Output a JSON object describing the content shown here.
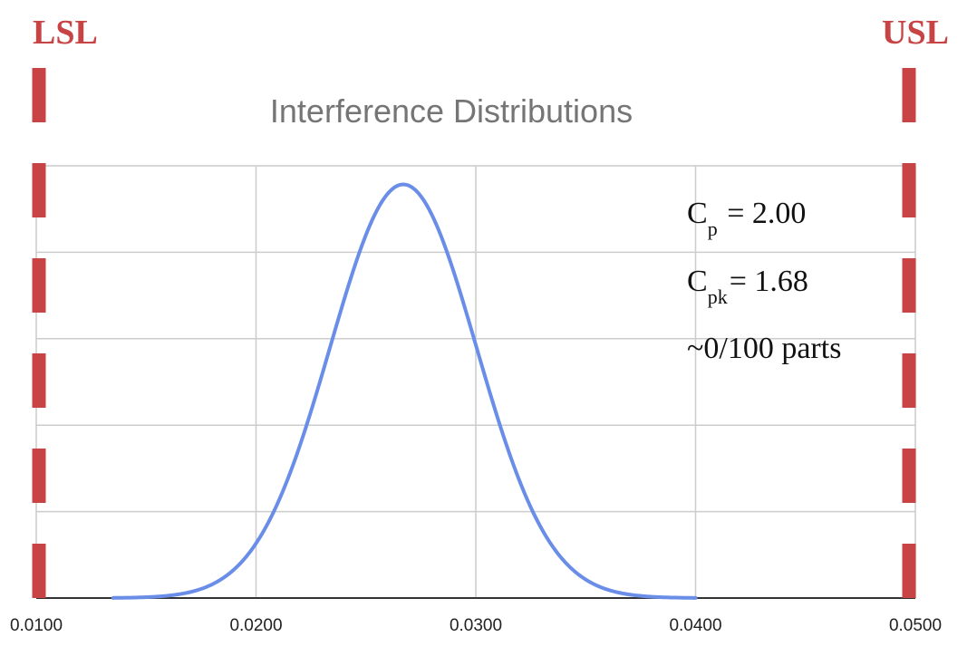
{
  "labels": {
    "lsl": "LSL",
    "usl": "USL"
  },
  "stats": {
    "cp_symbol": "C",
    "cp_sub": "p",
    "cp_value": "= 2.00",
    "cpk_symbol": "C",
    "cpk_sub": "pk",
    "cpk_value": "= 1.68",
    "parts": "~0/100 parts"
  },
  "colors": {
    "curve": "#6a8ee8",
    "spec": "#c84444",
    "grid": "#cccccc",
    "title": "#757575"
  },
  "chart_data": {
    "type": "line",
    "title": "Interference Distributions",
    "xlabel": "",
    "ylabel": "",
    "xlim": [
      0.01,
      0.05
    ],
    "x_ticks": [
      "0.0100",
      "0.0200",
      "0.0300",
      "0.0400",
      "0.0500"
    ],
    "ylim": [
      0,
      1
    ],
    "y_gridlines": 5,
    "grid": true,
    "legend": "none",
    "series": [
      {
        "distribution": "normal",
        "mean": 0.0267,
        "std_dev": 0.00333,
        "x_range": [
          0.0135,
          0.04
        ],
        "peak": 0.957
      }
    ],
    "spec_limits": {
      "lsl": 0.01,
      "usl": 0.05
    }
  }
}
